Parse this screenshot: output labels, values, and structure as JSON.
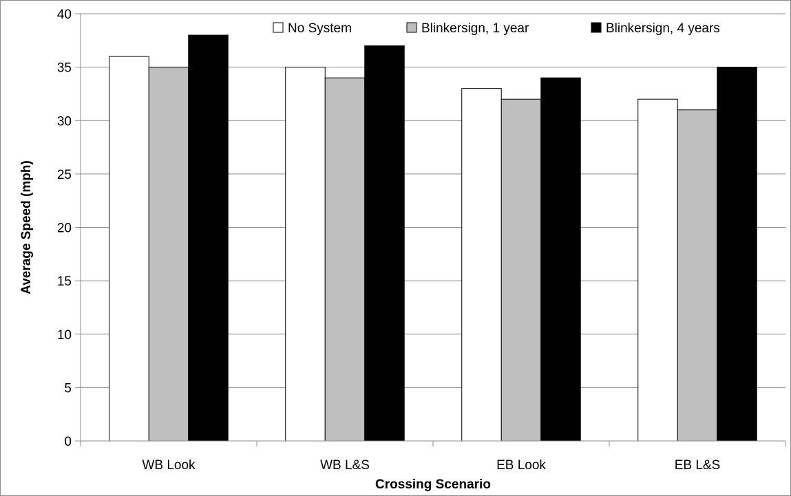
{
  "chart_data": {
    "type": "bar",
    "title": "",
    "xlabel": "Crossing Scenario",
    "ylabel": "Average Speed (mph)",
    "categories": [
      "WB Look",
      "WB L&S",
      "EB Look",
      "EB L&S"
    ],
    "series": [
      {
        "name": "No System",
        "values": [
          36,
          35,
          33,
          32
        ],
        "color": "#ffffff"
      },
      {
        "name": "Blinkersign, 1 year",
        "values": [
          35,
          34,
          32,
          31
        ],
        "color": "#bfbfbf"
      },
      {
        "name": "Blinkersign, 4 years",
        "values": [
          38,
          37,
          34,
          35
        ],
        "color": "#000000"
      }
    ],
    "ylim": [
      0,
      40
    ],
    "yticks": [
      0,
      5,
      10,
      15,
      20,
      25,
      30,
      35,
      40
    ],
    "grid": true,
    "legend_position": "top-right"
  }
}
